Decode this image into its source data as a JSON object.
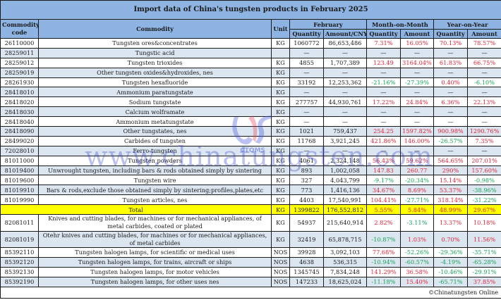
{
  "title": "Import data of China's tungsten products in February 2025",
  "headers": {
    "code": "Commodity code",
    "commodity": "Commodity",
    "unit": "Unit",
    "february": "February",
    "mom": "Month-on-Month",
    "yoy": "Year-on-Year",
    "quantity": "Quantity",
    "amount_cny": "Amount/CNY",
    "amount": "Amount"
  },
  "rows": [
    {
      "code": "26110000",
      "name": "Tungsten ores&concentrates",
      "unit": "KG",
      "qty": "1060772",
      "amt": "86,653,486",
      "mom_q": "7.31%",
      "mom_a": "16.05%",
      "yoy_q": "70.13%",
      "yoy_a": "78.57%",
      "c": [
        "red",
        "red",
        "red",
        "red"
      ]
    },
    {
      "code": "28259011",
      "name": "Tungstic acid",
      "unit": "",
      "qty": "—",
      "amt": "—",
      "mom_q": "—",
      "mom_a": "—",
      "yoy_q": "—",
      "yoy_a": "—",
      "c": [
        "",
        "",
        "",
        ""
      ]
    },
    {
      "code": "28259012",
      "name": "Tungsten trioxides",
      "unit": "KG",
      "qty": "4855",
      "amt": "1,707,389",
      "mom_q": "123.49",
      "mom_a": "3164.04%",
      "yoy_q": "61.83%",
      "yoy_a": "66.75%",
      "c": [
        "red",
        "red",
        "red",
        "red"
      ]
    },
    {
      "code": "28259019",
      "name": "Other tungsten oxides&hydroxides, nes",
      "unit": "KG",
      "qty": "—",
      "amt": "—",
      "mom_q": "—",
      "mom_a": "—",
      "yoy_q": "—",
      "yoy_a": "—",
      "c": [
        "",
        "",
        "",
        ""
      ]
    },
    {
      "code": "28261930",
      "name": "Tungsten hexafluoride",
      "unit": "KG",
      "qty": "33192",
      "amt": "12,253,362",
      "mom_q": "-21.16%",
      "mom_a": "-27.39%",
      "yoy_q": "0.40%",
      "yoy_a": "-6.10%",
      "c": [
        "green",
        "green",
        "red",
        "green"
      ]
    },
    {
      "code": "28418010",
      "name": "Ammonium paratungstate",
      "unit": "KG",
      "qty": "—",
      "amt": "—",
      "mom_q": "—",
      "mom_a": "—",
      "yoy_q": "—",
      "yoy_a": "—",
      "c": [
        "",
        "",
        "",
        ""
      ]
    },
    {
      "code": "28418020",
      "name": "Sodium tungstate",
      "unit": "KG",
      "qty": "277757",
      "amt": "44,930,761",
      "mom_q": "17.22%",
      "mom_a": "24.84%",
      "yoy_q": "6.36%",
      "yoy_a": "22.13%",
      "c": [
        "red",
        "red",
        "red",
        "red"
      ]
    },
    {
      "code": "28418030",
      "name": "Calcium wolframate",
      "unit": "KG",
      "qty": "—",
      "amt": "—",
      "mom_q": "—",
      "mom_a": "—",
      "yoy_q": "—",
      "yoy_a": "—",
      "c": [
        "",
        "",
        "",
        ""
      ]
    },
    {
      "code": "28418040",
      "name": "Ammonium metatungstate",
      "unit": "KG",
      "qty": "—",
      "amt": "—",
      "mom_q": "—",
      "mom_a": "—",
      "yoy_q": "—",
      "yoy_a": "—",
      "c": [
        "",
        "",
        "",
        ""
      ]
    },
    {
      "code": "28418090",
      "name": "Other tungstates, nes",
      "unit": "KG",
      "qty": "1021",
      "amt": "759,437",
      "mom_q": "254.25",
      "mom_a": "1597.82%",
      "yoy_q": "900.98%",
      "yoy_a": "1290.76%",
      "c": [
        "red",
        "red",
        "red",
        "red"
      ]
    },
    {
      "code": "28499020",
      "name": "Carbides of tungsten",
      "unit": "KG",
      "qty": "11768",
      "amt": "3,921,245",
      "mom_q": "421.86%",
      "mom_a": "146.00%",
      "yoy_q": "-26.57%",
      "yoy_a": "7.35%",
      "c": [
        "red",
        "red",
        "green",
        "red"
      ]
    },
    {
      "code": "72028010",
      "name": "Ferro-tungsten",
      "unit": "KG",
      "qty": "—",
      "amt": "—",
      "mom_q": "—",
      "mom_a": "—",
      "yoy_q": "—",
      "yoy_a": "—",
      "c": [
        "",
        "",
        "",
        ""
      ]
    },
    {
      "code": "81011000",
      "name": "Tungsten powders",
      "unit": "KG",
      "qty": "4061",
      "amt": "2,324,148",
      "mom_q": "56.43%",
      "mom_a": "59.62%",
      "yoy_q": "564.65%",
      "yoy_a": "207.01%",
      "c": [
        "red",
        "red",
        "red",
        "red"
      ]
    },
    {
      "code": "81019400",
      "name": "Unwrought tungsten, including bars & rods obtained simply by sintering",
      "unit": "KG",
      "qty": "893",
      "amt": "1,002,058",
      "mom_q": "147.83",
      "mom_a": "260.77",
      "yoy_q": "290%",
      "yoy_a": "157.60%",
      "c": [
        "red",
        "red",
        "red",
        "red"
      ]
    },
    {
      "code": "81019600",
      "name": "Tungsten wire",
      "unit": "KG",
      "qty": "327",
      "amt": "4,043,799",
      "mom_q": "-9.17%",
      "mom_a": "-20.34%",
      "yoy_q": "15.14%",
      "yoy_a": "-0.98%",
      "c": [
        "green",
        "green",
        "red",
        "green"
      ]
    },
    {
      "code": "81019910",
      "name": "Bars & rods,exclude those obtained simply by sintering;profiles,plates,etc",
      "unit": "KG",
      "qty": "773",
      "amt": "1,416,136",
      "mom_q": "34.67%",
      "mom_a": "8.69%",
      "yoy_q": "53.37%",
      "yoy_a": "-38.96%",
      "c": [
        "red",
        "red",
        "red",
        "green"
      ]
    },
    {
      "code": "81019990",
      "name": "Tungsten articles, nes",
      "unit": "KG",
      "qty": "4403",
      "amt": "17,540,991",
      "mom_q": "104.41%",
      "mom_a": "-27.71%",
      "yoy_q": "318.14%",
      "yoy_a": "-31.22%",
      "c": [
        "red",
        "green",
        "red",
        "green"
      ]
    }
  ],
  "total": {
    "name": "Total",
    "unit": "KG",
    "qty": "1399822",
    "amt": "176,552,812",
    "mom_q": "5.55%",
    "mom_a": "5.84%",
    "yoy_q": "48.99%",
    "yoy_a": "29.67%"
  },
  "rows2": [
    {
      "code": "82081011",
      "name": "Knives and cutting blades, for machines or for mechanical appliances, of metal carbides, coated or plated",
      "unit": "KG",
      "qty": "54937",
      "amt": "215,640,914",
      "mom_q": "2.82%",
      "mom_a": "-3.11%",
      "yoy_q": "13.37%",
      "yoy_a": "10.18%",
      "c": [
        "red",
        "green",
        "red",
        "red"
      ]
    },
    {
      "code": "82081019",
      "name": "Otehr knives and cutting blades, for machines or for mechanical appliances, of metal carbides",
      "unit": "KG",
      "qty": "32419",
      "amt": "65,878,715",
      "mom_q": "-10.87%",
      "mom_a": "1.03%",
      "yoy_q": "0.70%",
      "yoy_a": "11.56%",
      "c": [
        "green",
        "red",
        "red",
        "red"
      ]
    },
    {
      "code": "85392110",
      "name": "Tungsten halogen lamps, for scientific or medical uses",
      "unit": "NOS",
      "qty": "39928",
      "amt": "3,092,103",
      "mom_q": "77.68%",
      "mom_a": "-52.26%",
      "yoy_q": "-29.36%",
      "yoy_a": "-35.71%",
      "c": [
        "red",
        "green",
        "green",
        "green"
      ]
    },
    {
      "code": "85392120",
      "name": "Tungsten halogen lamps, for trains, aircraft or ships",
      "unit": "NOS",
      "qty": "4638",
      "amt": "536,315",
      "mom_q": "-10.94%",
      "mom_a": "-60.57%",
      "yoy_q": "-4.19%",
      "yoy_a": "-65.28%",
      "c": [
        "green",
        "green",
        "green",
        "green"
      ]
    },
    {
      "code": "85392130",
      "name": "Tungsten halogen lamps, for motor vehicles",
      "unit": "NOS",
      "qty": "1345745",
      "amt": "7,834,248",
      "mom_q": "141.29%",
      "mom_a": "36.58%",
      "yoy_q": "-10.46%",
      "yoy_a": "-29.91%",
      "c": [
        "red",
        "red",
        "green",
        "green"
      ]
    },
    {
      "code": "85392190",
      "name": "Tungsten halogen lamps, for other uses nes",
      "unit": "NOS",
      "qty": "147233",
      "amt": "18,625,024",
      "mom_q": "-11.18%",
      "mom_a": "15.40%",
      "yoy_q": "-65.71%",
      "yoy_a": "37.85%",
      "c": [
        "green",
        "red",
        "green",
        "red"
      ]
    }
  ],
  "footer": "©Chinatungsten Online",
  "watermark": {
    "text": "www.chinatungsten.com",
    "logo_label": "CTOMS"
  },
  "colors": {
    "header_bg": "#8db4e2",
    "alt_row": "#dce6f1",
    "total_bg": "#ffff00",
    "positive": "#e0253a",
    "negative": "#17a35a"
  }
}
